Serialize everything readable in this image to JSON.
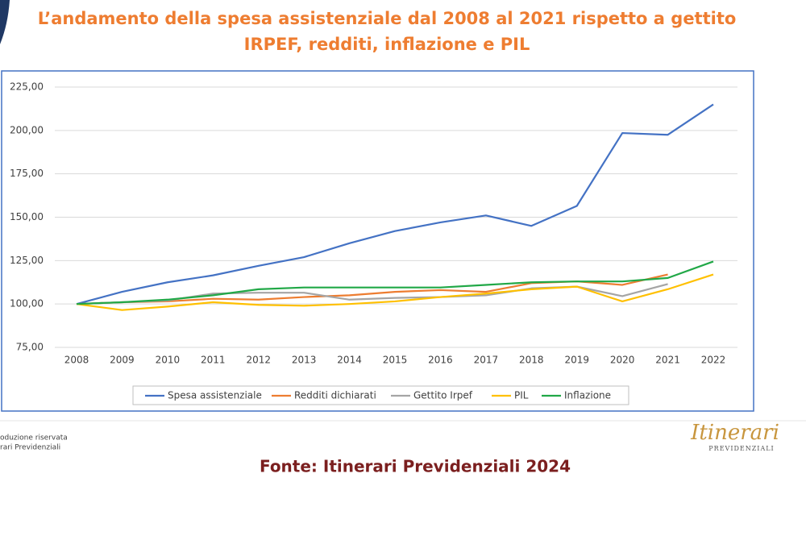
{
  "chart_data": {
    "type": "line",
    "title": [
      "L’andamento della spesa assistenziale dal 2008 al 2021 rispetto a gettito",
      "IRPEF, redditi, inflazione e PIL"
    ],
    "categories": [
      "2008",
      "2009",
      "2010",
      "2011",
      "2012",
      "2013",
      "2014",
      "2015",
      "2016",
      "2017",
      "2018",
      "2019",
      "2020",
      "2021",
      "2022"
    ],
    "series": [
      {
        "name": "Spesa assistenziale",
        "color": "#4472c4",
        "values": [
          100,
          107,
          112.5,
          116.5,
          122,
          127,
          135,
          142,
          147,
          151,
          145,
          156.5,
          198.5,
          197.5,
          215
        ]
      },
      {
        "name": "Redditi dichiarati",
        "color": "#ed7d31",
        "values": [
          100,
          101,
          101.5,
          103,
          102.5,
          104,
          105,
          107,
          108,
          107,
          112,
          113,
          111,
          117,
          null
        ]
      },
      {
        "name": "Gettito Irpef",
        "color": "#a5a5a5",
        "values": [
          100,
          101,
          102,
          106,
          106.5,
          106.5,
          102.5,
          103.5,
          104,
          105,
          109,
          110,
          104.5,
          111.5,
          null
        ]
      },
      {
        "name": "PIL",
        "color": "#ffc000",
        "values": [
          100,
          96.5,
          98.5,
          101,
          99.5,
          99,
          100,
          101.5,
          104,
          106,
          108.5,
          110,
          101.5,
          108.5,
          117
        ]
      },
      {
        "name": "Inflazione",
        "color": "#21a847",
        "values": [
          100,
          101,
          102.5,
          105,
          108.5,
          109.5,
          109.5,
          109.5,
          109.5,
          111,
          112.5,
          113,
          113,
          115,
          124.5
        ]
      }
    ],
    "ylim": [
      75,
      225
    ],
    "yticks": [
      {
        "value": 75,
        "label": "75,00"
      },
      {
        "value": 100,
        "label": "100,00"
      },
      {
        "value": 125,
        "label": "125,00"
      },
      {
        "value": 150,
        "label": "150,00"
      },
      {
        "value": 175,
        "label": "175,00"
      },
      {
        "value": 200,
        "label": "200,00"
      },
      {
        "value": 225,
        "label": "225,00"
      }
    ],
    "grid": true,
    "legend": "bottom"
  },
  "footer": {
    "note_lines": [
      "oduzione riservata",
      "rari Previdenziali"
    ],
    "logo": "Itinerari",
    "logo_sub": "PREVIDENZIALI",
    "source": "Fonte: Itinerari Previdenziali 2024"
  }
}
